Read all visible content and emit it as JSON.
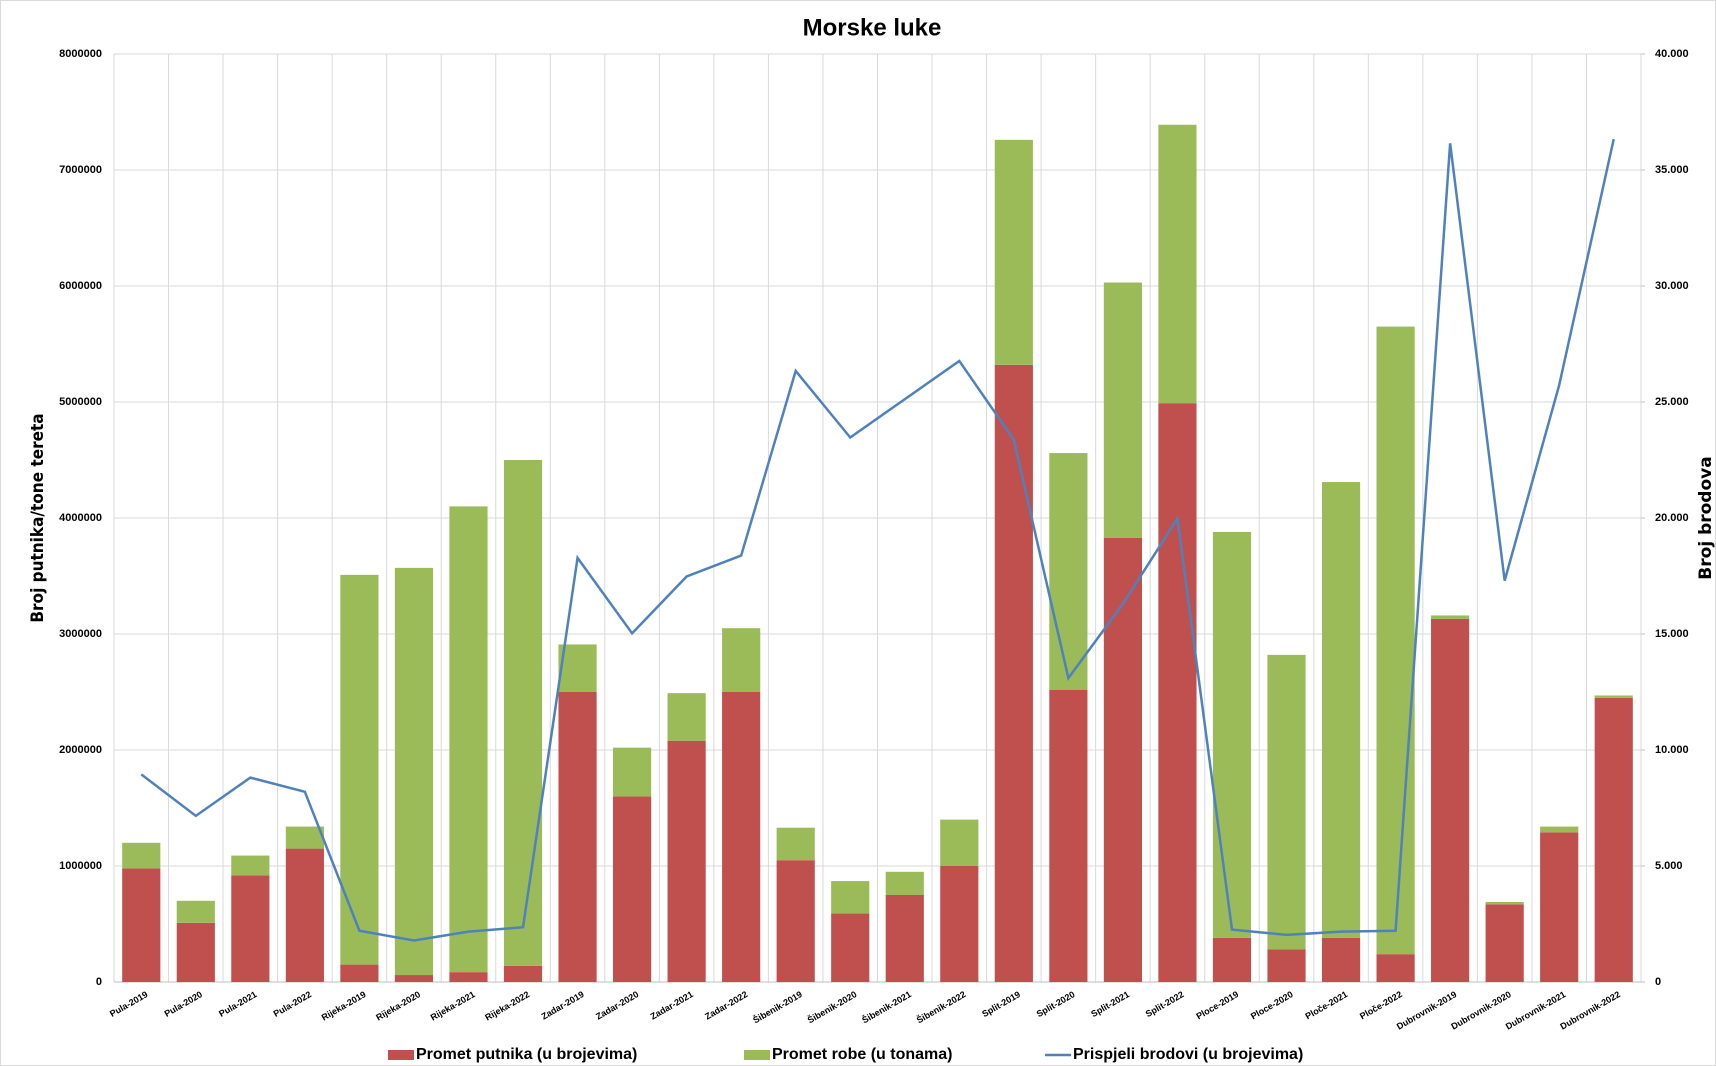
{
  "chart_data": {
    "type": "bar",
    "title": "Morske luke",
    "y_label": "Broj putnika/tone tereta",
    "y2_label": "Broj brodova",
    "categories": [
      "Pula-2019",
      "Pula-2020",
      "Pula-2021",
      "Pula-2022",
      "Rijeka-2019",
      "Rijeka-2020",
      "Rijeka-2021",
      "Rijeka-2022",
      "Zadar-2019",
      "Zadar-2020",
      "Zadar-2021",
      "Zadar-2022",
      "Šibenik-2019",
      "Šibenik-2020",
      "Šibenik-2021",
      "Šibenik-2022",
      "Split-2019",
      "Split-2020",
      "Split-2021",
      "Split-2022",
      "Ploce-2019",
      "Ploce-2020",
      "Ploče-2021",
      "Ploče-2022",
      "Dubrovnik-2019",
      "Dubrovnik-2020",
      "Dubrovnik-2021",
      "Dubrovnik-2022"
    ],
    "series": [
      {
        "name": "Promet putnika (u brojevima)",
        "color": "#c0504d",
        "type": "bar",
        "values": [
          980000,
          510000,
          920000,
          1150000,
          150000,
          60000,
          85000,
          140000,
          2500000,
          1600000,
          2080000,
          2500000,
          1050000,
          590000,
          750000,
          1000000,
          5320000,
          2520000,
          3830000,
          4990000,
          380000,
          280000,
          380000,
          240000,
          3130000,
          670000,
          1290000,
          2450000
        ]
      },
      {
        "name": "Promet robe (u tonama)",
        "color": "#9bbb59",
        "type": "bar",
        "values": [
          220000,
          190000,
          170000,
          190000,
          3360000,
          3510000,
          4015000,
          4360000,
          410000,
          420000,
          410000,
          550000,
          280000,
          280000,
          200000,
          400000,
          1940000,
          2040000,
          2200000,
          2400000,
          3500000,
          2540000,
          3930000,
          5410000,
          30000,
          20000,
          50000,
          20000
        ]
      },
      {
        "name": "Prispjeli brodovi (u brojevima)",
        "color": "#4f81bd",
        "type": "line",
        "axis": "y2",
        "values": [
          8950,
          7160,
          8810,
          8200,
          2210,
          1790,
          2170,
          2360,
          18280,
          15030,
          17480,
          18380,
          26340,
          23470,
          25120,
          26770,
          23370,
          13100,
          16300,
          19980,
          2260,
          2030,
          2170,
          2210,
          36150,
          17300,
          25730,
          36330
        ]
      }
    ],
    "ylim": [
      0,
      8000000
    ],
    "yticks": [
      0,
      1000000,
      2000000,
      3000000,
      4000000,
      5000000,
      6000000,
      7000000,
      8000000
    ],
    "y2lim": [
      0,
      40000
    ],
    "y2ticks": [
      0,
      {
        "value": 5000,
        "label": "5.000"
      },
      {
        "value": 10000,
        "label": "10.000"
      },
      {
        "value": 15000,
        "label": "15.000"
      },
      {
        "value": 20000,
        "label": "20.000"
      },
      {
        "value": 25000,
        "label": "25.000"
      },
      {
        "value": 30000,
        "label": "30.000"
      },
      {
        "value": 35000,
        "label": "35.000"
      },
      {
        "value": 40000,
        "label": "40.000"
      }
    ],
    "grid": true,
    "legend": "bottom"
  }
}
